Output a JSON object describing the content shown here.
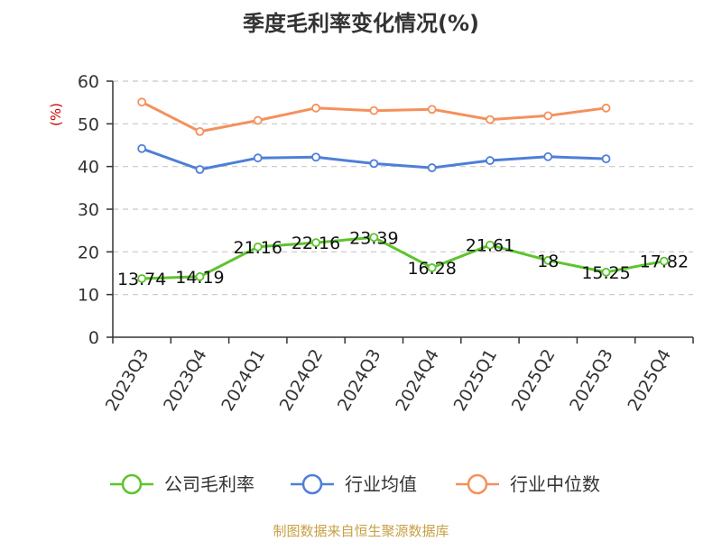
{
  "chart_data": {
    "type": "line",
    "title": "季度毛利率变化情况(%)",
    "ylabel": "(%)",
    "xlabel": "",
    "ylim": [
      0,
      60
    ],
    "yticks": [
      0,
      10,
      20,
      30,
      40,
      50,
      60
    ],
    "grid": true,
    "legend_position": "bottom",
    "categories": [
      "2023Q3",
      "2023Q4",
      "2024Q1",
      "2024Q2",
      "2024Q3",
      "2024Q4",
      "2025Q1",
      "2025Q2",
      "2025Q3",
      "2025Q4"
    ],
    "series": [
      {
        "name": "公司毛利率",
        "color": "#5cc42c",
        "values": [
          13.74,
          14.19,
          21.16,
          22.16,
          23.39,
          16.28,
          21.61,
          18,
          15.25,
          17.82
        ],
        "labels": [
          "13.74",
          "14.19",
          "21.16",
          "22.16",
          "23.39",
          "16.28",
          "21.61",
          "18",
          "15.25",
          "17.82"
        ]
      },
      {
        "name": "行业均值",
        "color": "#4e7fd8",
        "values": [
          44.2,
          39.3,
          42.0,
          42.2,
          40.7,
          39.7,
          41.4,
          42.3,
          41.8,
          null
        ]
      },
      {
        "name": "行业中位数",
        "color": "#f5905c",
        "values": [
          55.1,
          48.2,
          50.8,
          53.7,
          53.1,
          53.4,
          51.0,
          51.9,
          53.7,
          null
        ]
      }
    ]
  },
  "footer": {
    "source": "制图数据来自恒生聚源数据库"
  }
}
